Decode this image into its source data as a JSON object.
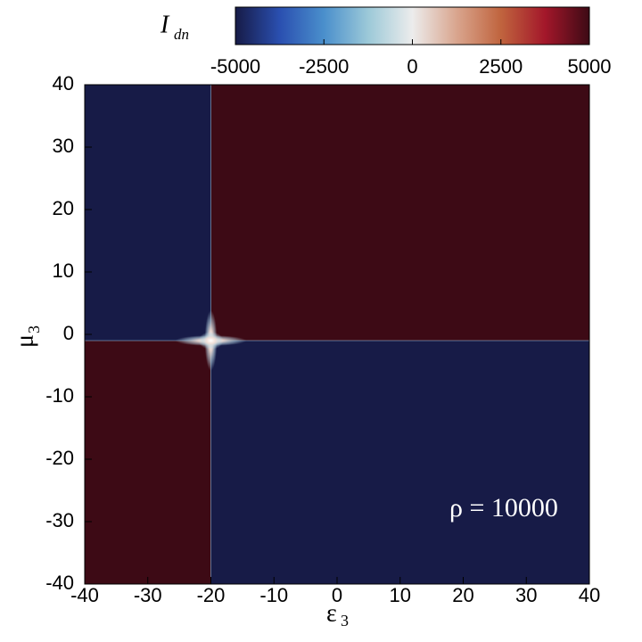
{
  "chart_data": {
    "type": "heatmap",
    "xlabel": "ε",
    "xlabel_sub": "3",
    "ylabel": "μ",
    "ylabel_sub": "3",
    "xlim": [
      -40,
      40
    ],
    "ylim": [
      -40,
      40
    ],
    "xticks": [
      -40,
      -30,
      -20,
      -10,
      0,
      10,
      20,
      30,
      40
    ],
    "yticks": [
      -40,
      -30,
      -20,
      -10,
      0,
      10,
      20,
      30,
      40
    ],
    "regions": [
      {
        "xlim": [
          -40,
          -20
        ],
        "ylim": [
          -1,
          40
        ],
        "value": -5000
      },
      {
        "xlim": [
          -20,
          40
        ],
        "ylim": [
          -1,
          40
        ],
        "value": 5000
      },
      {
        "xlim": [
          -40,
          -20
        ],
        "ylim": [
          -40,
          -1
        ],
        "value": 5000
      },
      {
        "xlim": [
          -20,
          40
        ],
        "ylim": [
          -40,
          -1
        ],
        "value": -5000
      }
    ],
    "singularity": {
      "x": -20,
      "y": -1
    },
    "colorbar": {
      "label": "I",
      "label_sub": "dn",
      "lim": [
        -5000,
        5000
      ],
      "ticks": [
        -5000,
        -2500,
        0,
        2500,
        5000
      ],
      "colormap": [
        {
          "value": -5000,
          "color": "#171b47"
        },
        {
          "value": -3750,
          "color": "#2a4fb0"
        },
        {
          "value": -2500,
          "color": "#4a8fcc"
        },
        {
          "value": -1250,
          "color": "#9cc9d8"
        },
        {
          "value": 0,
          "color": "#ececec"
        },
        {
          "value": 1250,
          "color": "#d9a58e"
        },
        {
          "value": 2500,
          "color": "#c0643e"
        },
        {
          "value": 3750,
          "color": "#a3172a"
        },
        {
          "value": 5000,
          "color": "#3d0a15"
        }
      ]
    },
    "annotation": "ρ = 10000"
  }
}
